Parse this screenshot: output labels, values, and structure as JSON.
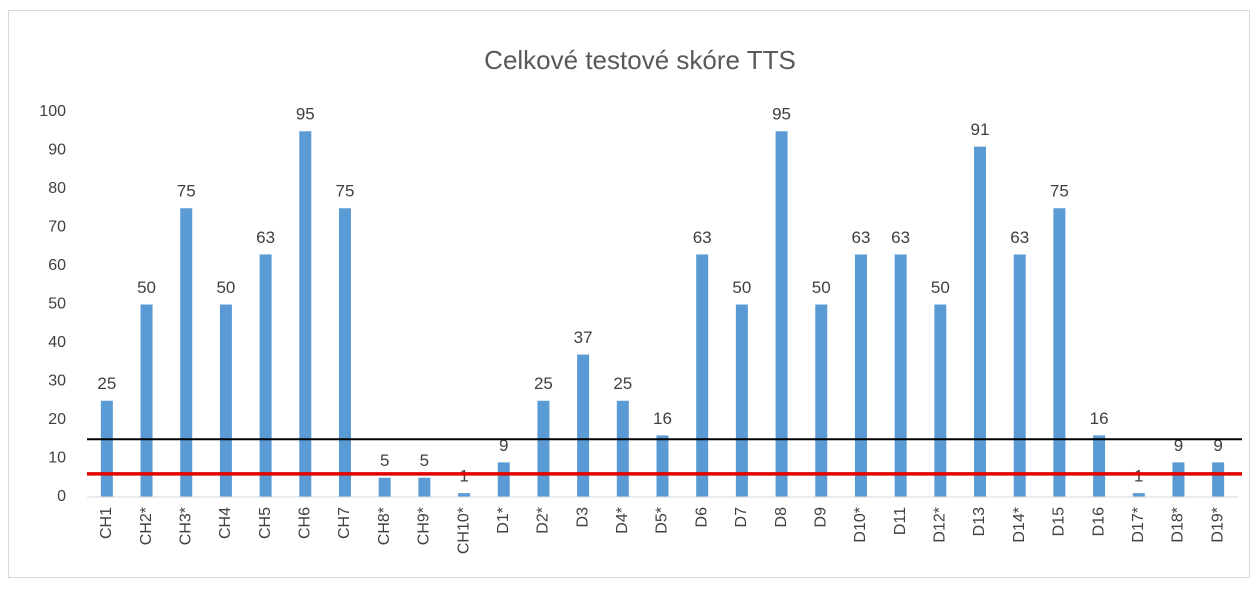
{
  "chart_data": {
    "type": "bar",
    "title": "Celkové testové skóre TTS",
    "categories": [
      "CH1",
      "CH2*",
      "CH3*",
      "CH4",
      "CH5",
      "CH6",
      "CH7",
      "CH8*",
      "CH9*",
      "CH10*",
      "D1*",
      "D2*",
      "D3",
      "D4*",
      "D5*",
      "D6",
      "D7",
      "D8",
      "D9",
      "D10*",
      "D11",
      "D12*",
      "D13",
      "D14*",
      "D15",
      "D16",
      "D17*",
      "D18*",
      "D19*"
    ],
    "values": [
      25,
      50,
      75,
      50,
      63,
      95,
      75,
      5,
      5,
      1,
      9,
      25,
      37,
      25,
      16,
      63,
      50,
      95,
      50,
      63,
      63,
      50,
      91,
      63,
      75,
      16,
      1,
      9,
      9
    ],
    "color": "#5b9bd5",
    "ylim": [
      0,
      100
    ],
    "yticks": [
      0,
      10,
      20,
      30,
      40,
      50,
      60,
      70,
      80,
      90,
      100
    ],
    "grid": false,
    "reference_lines": [
      {
        "value": 15,
        "color": "#000000"
      },
      {
        "value": 6,
        "color": "#e00000"
      }
    ]
  }
}
